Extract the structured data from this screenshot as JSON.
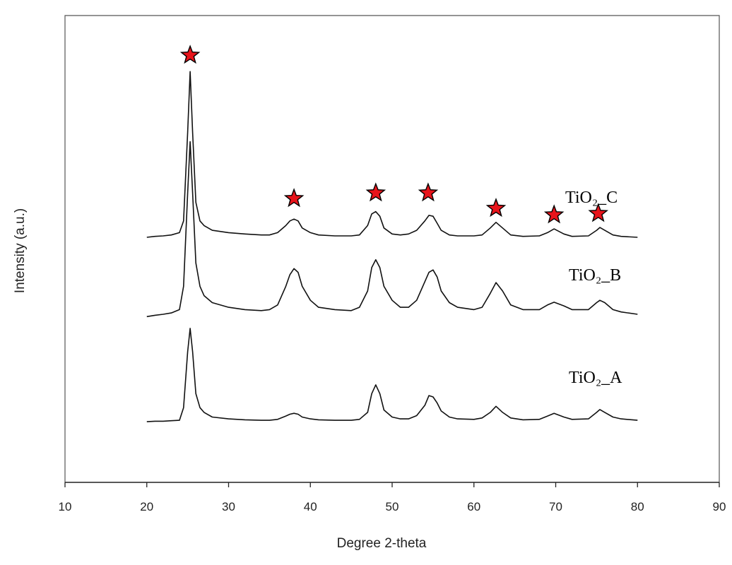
{
  "chart_data": {
    "type": "line",
    "x_label": "Degree 2-theta",
    "y_label": "Intensity (a.u.)",
    "x": [
      20,
      21,
      22,
      23,
      24,
      24.5,
      25,
      25.3,
      25.6,
      26,
      26.5,
      27,
      28,
      30,
      32,
      34,
      35,
      36,
      37,
      37.5,
      38,
      38.5,
      39,
      40,
      41,
      43,
      45,
      46,
      47,
      47.5,
      48,
      48.5,
      49,
      50,
      51,
      52,
      53,
      54,
      54.5,
      55,
      55.5,
      56,
      57,
      58,
      60,
      61,
      62,
      62.7,
      63.5,
      64.5,
      66,
      68,
      69,
      69.8,
      71,
      72,
      74,
      75,
      75.4,
      76,
      77,
      78,
      80
    ],
    "series": [
      {
        "name": "TiO₂_C",
        "color": "#111111",
        "values": [
          52.5,
          52.7,
          52.8,
          53,
          53.5,
          56,
          75,
          88,
          75,
          60,
          56,
          55,
          54,
          53.5,
          53.2,
          53,
          53,
          53.5,
          55,
          56,
          56.4,
          56,
          54.5,
          53.5,
          53,
          52.8,
          52.8,
          53,
          55,
          57.5,
          58,
          57,
          54.5,
          53.2,
          53,
          53.2,
          54,
          56,
          57.2,
          57,
          55.5,
          54,
          53,
          52.8,
          52.8,
          53,
          54.5,
          55.7,
          54.5,
          53,
          52.7,
          52.8,
          53.5,
          54.3,
          53.2,
          52.7,
          52.8,
          54,
          54.6,
          54,
          53,
          52.7,
          52.5
        ]
      },
      {
        "name": "TiO₂_B",
        "color": "#111111",
        "values": [
          35.5,
          35.8,
          36,
          36.3,
          37,
          42,
          62,
          73,
          62,
          47,
          42,
          40,
          38.5,
          37.5,
          37,
          36.8,
          37,
          38,
          42,
          44.5,
          45.8,
          45,
          42,
          39,
          37.5,
          37,
          36.8,
          37.5,
          41,
          46,
          47.7,
          46,
          42,
          39,
          37.5,
          37.5,
          39,
          43,
          45,
          45.5,
          44,
          41,
          38.5,
          37.5,
          37,
          37.5,
          40.5,
          42.8,
          41,
          38,
          37,
          37,
          38,
          38.6,
          37.8,
          37,
          37,
          38.5,
          39,
          38.5,
          37,
          36.5,
          36
        ]
      },
      {
        "name": "TiO₂_A",
        "color": "#111111",
        "values": [
          13,
          13.1,
          13.1,
          13.2,
          13.3,
          16,
          28,
          33,
          28,
          19,
          16,
          15,
          14,
          13.6,
          13.4,
          13.3,
          13.3,
          13.5,
          14.2,
          14.6,
          14.8,
          14.6,
          14,
          13.6,
          13.4,
          13.3,
          13.3,
          13.5,
          15,
          19,
          20.9,
          19,
          15.5,
          14,
          13.6,
          13.6,
          14.3,
          16.5,
          18.6,
          18.3,
          17,
          15.3,
          14,
          13.6,
          13.5,
          13.8,
          15,
          16.3,
          15,
          13.8,
          13.4,
          13.5,
          14.2,
          14.8,
          14,
          13.5,
          13.6,
          15,
          15.6,
          15,
          14,
          13.6,
          13.3
        ]
      }
    ],
    "peak_markers": {
      "color": "#e8141b",
      "x": [
        25.3,
        38,
        48,
        54.4,
        62.7,
        69.8,
        75.2
      ],
      "y": [
        91.5,
        60.8,
        62,
        62,
        58.7,
        57.3,
        57.6
      ]
    },
    "xlim": [
      10,
      90
    ],
    "xticks": [
      10,
      20,
      30,
      40,
      50,
      60,
      70,
      80,
      90
    ],
    "ylim": [
      0,
      100
    ],
    "grid": false
  }
}
